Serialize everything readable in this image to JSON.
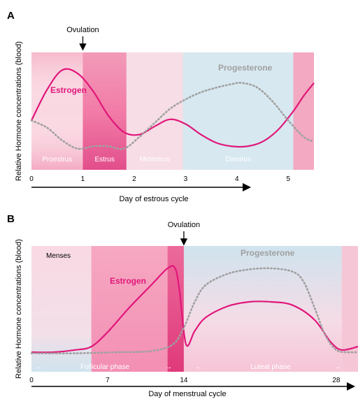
{
  "colors": {
    "estrogen": "#e0177a",
    "progesterone": "#a0a0a0",
    "pink_light": "#f9d6e0",
    "pink_mid": "#f3a6bf",
    "pink_dark": "#e54d8a",
    "blue_light": "#d3e6ef"
  },
  "chart_data": [
    {
      "panel": "A",
      "type": "line",
      "title": "",
      "xlabel": "Day of estrous cycle",
      "ylabel": "Relative Hormone concentrations (blood)",
      "xlim": [
        0,
        5.5
      ],
      "x_ticks": [
        "0",
        "1",
        "2",
        "3",
        "4",
        "5"
      ],
      "annotation": "Ovulation",
      "annotation_x": 1,
      "phases": [
        {
          "label": "Proestrus",
          "start": 0,
          "end": 1
        },
        {
          "label": "Estrus",
          "start": 1,
          "end": 1.85
        },
        {
          "label": "Metestrus",
          "start": 1.85,
          "end": 2.95
        },
        {
          "label": "Diestrus",
          "start": 2.95,
          "end": 5.1
        },
        {
          "label": "",
          "start": 5.1,
          "end": 5.5
        }
      ],
      "series": [
        {
          "name": "Estrogen",
          "x": [
            0,
            0.3,
            0.6,
            0.9,
            1.2,
            1.5,
            1.8,
            2.1,
            2.4,
            2.7,
            3.0,
            3.3,
            3.6,
            3.9,
            4.2,
            4.5,
            4.8,
            5.1,
            5.3,
            5.5
          ],
          "y": [
            0.42,
            0.68,
            0.85,
            0.82,
            0.67,
            0.46,
            0.32,
            0.3,
            0.37,
            0.43,
            0.39,
            0.3,
            0.23,
            0.2,
            0.2,
            0.24,
            0.34,
            0.5,
            0.63,
            0.74
          ]
        },
        {
          "name": "Progesterone",
          "x": [
            0,
            0.3,
            0.6,
            0.9,
            1.2,
            1.5,
            1.8,
            2.1,
            2.4,
            2.7,
            3.0,
            3.3,
            3.6,
            3.9,
            4.1,
            4.4,
            4.7,
            5.0,
            5.3,
            5.5
          ],
          "y": [
            0.42,
            0.36,
            0.25,
            0.18,
            0.2,
            0.2,
            0.18,
            0.28,
            0.4,
            0.52,
            0.6,
            0.66,
            0.7,
            0.73,
            0.74,
            0.7,
            0.58,
            0.42,
            0.28,
            0.24
          ]
        }
      ]
    },
    {
      "panel": "B",
      "type": "line",
      "title": "",
      "xlabel": "Day of menstrual cycle",
      "ylabel": "Relative Hormone concentrations (blood)",
      "xlim": [
        0,
        30
      ],
      "x_ticks": [
        "0",
        "7",
        "14",
        "28"
      ],
      "x_tick_values": [
        0,
        7,
        14,
        28
      ],
      "annotation": "Ovulation",
      "annotation_x": 14,
      "phases": [
        {
          "label": "Menses",
          "start": 0,
          "end": 5.5
        },
        {
          "label": "",
          "start": 5.5,
          "end": 12.5
        },
        {
          "label": "",
          "start": 12.5,
          "end": 14
        },
        {
          "label": "",
          "start": 14,
          "end": 28.5
        },
        {
          "label": "",
          "start": 28.5,
          "end": 30
        }
      ],
      "phase_labels": [
        "Follicular phase",
        "Luteal phase"
      ],
      "series": [
        {
          "name": "Estrogen",
          "x": [
            0,
            2,
            4,
            5.5,
            7,
            9,
            11,
            12.5,
            13.2,
            13.6,
            14.2,
            15,
            16,
            18,
            20,
            22,
            24,
            26,
            27.5,
            28.5,
            30
          ],
          "y": [
            0.05,
            0.05,
            0.07,
            0.1,
            0.23,
            0.45,
            0.65,
            0.8,
            0.8,
            0.6,
            0.12,
            0.24,
            0.36,
            0.46,
            0.5,
            0.5,
            0.47,
            0.34,
            0.14,
            0.07,
            0.1
          ]
        },
        {
          "name": "Progesterone",
          "x": [
            0,
            4,
            8,
            11,
            13,
            14,
            15,
            16,
            18,
            20,
            22,
            24,
            25,
            26,
            27,
            28,
            29,
            30
          ],
          "y": [
            0.04,
            0.04,
            0.05,
            0.06,
            0.12,
            0.27,
            0.5,
            0.65,
            0.75,
            0.79,
            0.8,
            0.77,
            0.68,
            0.45,
            0.2,
            0.07,
            0.05,
            0.05
          ]
        }
      ]
    }
  ]
}
